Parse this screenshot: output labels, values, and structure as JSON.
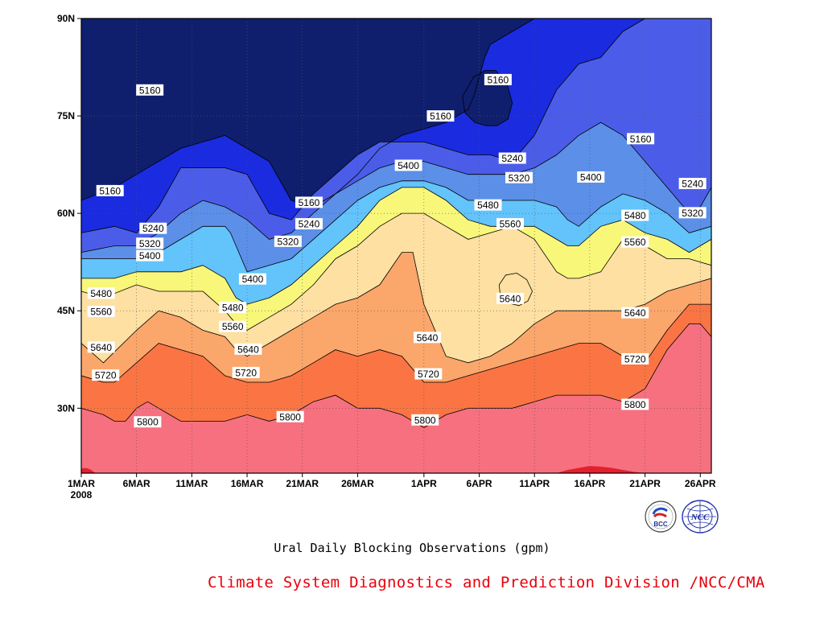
{
  "chart_data": {
    "type": "heatmap",
    "subtype": "filled-contour time-latitude",
    "title": "Ural Daily Blocking Observations (gpm)",
    "xlabel": "",
    "ylabel": "",
    "x_start_day": 1,
    "x_end_day": 58,
    "x_ticks": [
      {
        "day": 1,
        "label": "1MAR"
      },
      {
        "day": 6,
        "label": "6MAR"
      },
      {
        "day": 11,
        "label": "11MAR"
      },
      {
        "day": 16,
        "label": "16MAR"
      },
      {
        "day": 21,
        "label": "21MAR"
      },
      {
        "day": 26,
        "label": "26MAR"
      },
      {
        "day": 32,
        "label": "1APR"
      },
      {
        "day": 37,
        "label": "6APR"
      },
      {
        "day": 42,
        "label": "11APR"
      },
      {
        "day": 47,
        "label": "16APR"
      },
      {
        "day": 52,
        "label": "21APR"
      },
      {
        "day": 57,
        "label": "26APR"
      }
    ],
    "x_year_label": "2008",
    "ylim": [
      20,
      90
    ],
    "y_ticks": [
      {
        "lat": 30,
        "label": "30N"
      },
      {
        "lat": 45,
        "label": "45N"
      },
      {
        "lat": 60,
        "label": "60N"
      },
      {
        "lat": 75,
        "label": "75N"
      },
      {
        "lat": 90,
        "label": "90N"
      }
    ],
    "grid": true,
    "levels": [
      5160,
      5240,
      5320,
      5400,
      5480,
      5560,
      5640,
      5720,
      5800,
      5880
    ],
    "colors": [
      "#0f1f6e",
      "#1a2be0",
      "#4b5de8",
      "#5b8fe8",
      "#63c3fb",
      "#f8f77a",
      "#fde0a2",
      "#fba66b",
      "#fa7543",
      "#f6707f",
      "#e4202e"
    ],
    "boundaries": [
      {
        "level": 5160,
        "days": [
          1,
          4,
          6,
          10,
          14,
          18,
          20,
          22,
          24,
          26,
          28,
          30,
          32,
          34,
          36,
          36.5,
          37,
          37.5,
          38,
          40,
          42,
          44,
          46,
          48,
          50,
          52,
          54,
          56,
          58
        ],
        "lats": [
          62,
          64,
          66,
          70,
          72,
          68,
          62,
          61,
          63,
          66,
          70,
          72,
          73,
          74,
          76,
          78,
          81,
          84,
          86,
          88,
          90,
          90,
          90,
          90,
          90,
          90,
          90,
          90,
          90
        ]
      },
      {
        "level": 5240,
        "days": [
          1,
          4,
          6,
          8,
          10,
          12,
          14,
          16,
          18,
          20,
          22,
          24,
          26,
          28,
          30,
          32,
          34,
          36,
          38,
          40,
          42,
          44,
          46,
          48,
          50,
          52,
          54,
          56,
          57,
          58
        ],
        "lats": [
          57,
          58,
          57,
          61,
          67,
          67,
          67,
          66,
          60,
          59,
          63,
          66,
          69,
          71,
          71,
          71,
          70,
          69,
          69,
          68,
          72,
          79,
          83,
          84,
          88,
          90,
          90,
          90,
          90,
          90
        ]
      },
      {
        "level": 5320,
        "days": [
          1,
          4,
          6,
          8,
          10,
          12,
          14,
          16,
          18,
          20,
          22,
          24,
          26,
          28,
          30,
          32,
          34,
          36,
          38,
          40,
          42,
          44,
          46,
          48,
          50,
          52,
          54,
          56,
          57,
          58
        ],
        "lats": [
          54,
          55,
          55,
          57,
          60,
          62,
          61,
          59,
          56,
          57,
          60,
          63,
          65,
          67,
          68,
          68,
          67,
          66,
          66,
          66,
          67,
          69,
          72,
          74,
          72,
          68,
          64,
          60,
          61,
          64
        ]
      },
      {
        "level": 5400,
        "days": [
          1,
          4,
          6,
          8,
          10,
          12,
          14,
          14.5,
          16,
          18,
          20,
          22,
          24,
          26,
          28,
          30,
          32,
          34,
          36,
          38,
          40,
          42,
          44,
          45,
          46,
          48,
          50,
          52,
          54,
          56,
          58
        ],
        "lats": [
          53,
          53,
          53,
          54,
          56,
          58,
          58,
          57,
          51,
          52,
          53,
          56,
          59,
          62,
          64,
          65,
          65,
          64,
          62,
          62,
          62,
          62,
          61,
          59,
          58,
          61,
          63,
          62,
          60,
          57,
          58
        ]
      },
      {
        "level": 5480,
        "days": [
          1,
          4,
          6,
          8,
          10,
          12,
          14,
          15,
          16,
          18,
          20,
          22,
          24,
          26,
          28,
          30,
          32,
          34,
          36,
          38,
          40,
          42,
          44,
          45,
          46,
          48,
          50,
          52,
          54,
          56,
          58
        ],
        "lats": [
          50,
          50,
          51,
          51,
          51,
          52,
          50,
          47,
          46,
          47,
          49,
          52,
          55,
          58,
          62,
          64,
          64,
          62,
          59,
          58,
          58,
          58,
          56,
          55,
          55,
          58,
          59,
          57,
          56,
          54,
          56
        ]
      },
      {
        "level": 5560,
        "days": [
          1,
          3,
          6,
          8,
          10,
          12,
          14,
          15,
          16,
          18,
          20,
          22,
          24,
          26,
          28,
          29,
          30,
          32,
          34,
          36,
          38,
          40,
          42,
          44,
          45,
          46,
          48,
          50,
          52,
          54,
          56,
          58
        ],
        "lats": [
          48,
          47,
          49,
          48,
          48,
          48,
          45,
          43,
          42,
          44,
          46,
          49,
          53,
          55,
          58,
          59,
          60,
          60,
          58,
          56,
          57,
          58,
          56,
          51,
          50,
          50,
          51,
          56,
          55,
          53,
          53,
          52
        ]
      },
      {
        "level": 5640,
        "days": [
          1,
          3,
          6,
          8,
          10,
          12,
          14,
          15,
          16,
          18,
          20,
          22,
          24,
          26,
          28,
          30,
          31,
          32,
          34,
          36,
          38,
          40,
          42,
          44,
          46,
          48,
          50,
          52,
          54,
          56,
          58
        ],
        "lats": [
          40,
          37,
          42,
          45,
          44,
          42,
          41,
          39,
          38,
          40,
          42,
          44,
          46,
          47,
          49,
          54,
          54,
          46,
          38,
          37,
          38,
          40,
          43,
          45,
          45,
          45,
          45,
          46,
          48,
          49,
          50
        ]
      },
      {
        "level": 5720,
        "days": [
          1,
          3,
          4,
          6,
          8,
          10,
          12,
          14,
          16,
          18,
          20,
          22,
          24,
          26,
          28,
          30,
          32,
          34,
          36,
          38,
          40,
          42,
          44,
          46,
          48,
          50,
          52,
          54,
          56,
          57,
          58
        ],
        "lats": [
          35,
          34,
          34,
          37,
          40,
          39,
          38,
          35,
          34,
          34,
          35,
          37,
          39,
          38,
          39,
          38,
          34,
          34,
          35,
          36,
          37,
          38,
          39,
          40,
          40,
          38,
          37,
          42,
          46,
          46,
          46
        ]
      },
      {
        "level": 5800,
        "days": [
          1,
          3,
          4,
          5,
          6,
          7,
          8,
          10,
          12,
          14,
          16,
          18,
          20,
          22,
          24,
          26,
          28,
          30,
          32,
          34,
          36,
          38,
          40,
          42,
          44,
          46,
          48,
          50,
          52,
          54,
          56,
          57,
          58
        ],
        "lats": [
          30,
          29,
          28,
          28,
          30,
          31,
          30,
          28,
          28,
          28,
          29,
          28,
          29,
          31,
          32,
          30,
          30,
          29,
          27,
          29,
          30,
          30,
          30,
          31,
          32,
          32,
          32,
          31,
          33,
          39,
          43,
          43,
          41
        ]
      },
      {
        "level": 5880,
        "days": [
          1,
          1.4,
          1.8,
          2.3,
          44,
          45,
          46,
          47,
          48,
          49,
          50,
          51,
          52,
          53,
          58
        ],
        "lats": [
          20.7,
          20.8,
          20.6,
          20,
          20,
          20.5,
          20.8,
          21.1,
          21.0,
          20.8,
          20.5,
          20.2,
          20,
          20,
          20
        ]
      }
    ],
    "extra_contours": [
      {
        "level": 5160,
        "note": "closed low near 6APR 75-81N",
        "days": [
          35.5,
          36.5,
          37.5,
          38.5,
          39.5,
          40,
          39.6,
          38.6,
          37.6,
          36.6,
          35.7,
          35.5
        ],
        "lats": [
          78,
          81,
          82,
          82,
          80,
          77,
          74.5,
          73.5,
          73.5,
          74,
          75.5,
          78
        ]
      },
      {
        "level": 5560,
        "note": "closed cell near 9APR 46-51N",
        "days": [
          38.8,
          39.4,
          40.4,
          41.3,
          41.8,
          41.4,
          40.6,
          39.6,
          38.9,
          38.8
        ],
        "lats": [
          49,
          50.5,
          50.8,
          49.8,
          48,
          46.5,
          45.8,
          46.2,
          47.5,
          49
        ]
      }
    ],
    "contour_labels": [
      {
        "text": "5160",
        "day": 7.2,
        "lat": 79
      },
      {
        "text": "5160",
        "day": 3.6,
        "lat": 63.5
      },
      {
        "text": "5160",
        "day": 21.6,
        "lat": 61.7
      },
      {
        "text": "5160",
        "day": 33.5,
        "lat": 75
      },
      {
        "text": "5160",
        "day": 38.7,
        "lat": 80.6
      },
      {
        "text": "5160",
        "day": 51.6,
        "lat": 71.5
      },
      {
        "text": "5240",
        "day": 7.5,
        "lat": 57.7
      },
      {
        "text": "5240",
        "day": 21.6,
        "lat": 58.4
      },
      {
        "text": "5240",
        "day": 40,
        "lat": 68.5
      },
      {
        "text": "5240",
        "day": 56.3,
        "lat": 64.6
      },
      {
        "text": "5320",
        "day": 7.2,
        "lat": 55.4
      },
      {
        "text": "5320",
        "day": 19.7,
        "lat": 55.7
      },
      {
        "text": "5320",
        "day": 40.6,
        "lat": 65.5
      },
      {
        "text": "5320",
        "day": 56.3,
        "lat": 60.1
      },
      {
        "text": "5400",
        "day": 7.2,
        "lat": 53.5
      },
      {
        "text": "5400",
        "day": 16.5,
        "lat": 49.9
      },
      {
        "text": "5400",
        "day": 30.6,
        "lat": 67.4
      },
      {
        "text": "5400",
        "day": 47.1,
        "lat": 65.6
      },
      {
        "text": "5480",
        "day": 2.8,
        "lat": 47.7
      },
      {
        "text": "5480",
        "day": 14.7,
        "lat": 45.5
      },
      {
        "text": "5480",
        "day": 37.8,
        "lat": 61.3
      },
      {
        "text": "5480",
        "day": 51.1,
        "lat": 59.7
      },
      {
        "text": "5560",
        "day": 2.8,
        "lat": 44.9
      },
      {
        "text": "5560",
        "day": 14.7,
        "lat": 42.6
      },
      {
        "text": "5560",
        "day": 39.8,
        "lat": 58.4
      },
      {
        "text": "5560",
        "day": 51.1,
        "lat": 55.6
      },
      {
        "text": "5640",
        "day": 2.8,
        "lat": 39.4
      },
      {
        "text": "5640",
        "day": 16.1,
        "lat": 39.1
      },
      {
        "text": "5640",
        "day": 32.3,
        "lat": 40.9
      },
      {
        "text": "5640",
        "day": 39.8,
        "lat": 46.9
      },
      {
        "text": "5640",
        "day": 51.1,
        "lat": 44.7
      },
      {
        "text": "5720",
        "day": 3.2,
        "lat": 35.1
      },
      {
        "text": "5720",
        "day": 15.9,
        "lat": 35.5
      },
      {
        "text": "5720",
        "day": 32.4,
        "lat": 35.3
      },
      {
        "text": "5720",
        "day": 51.1,
        "lat": 37.6
      },
      {
        "text": "5800",
        "day": 7.0,
        "lat": 27.9
      },
      {
        "text": "5800",
        "day": 19.9,
        "lat": 28.7
      },
      {
        "text": "5800",
        "day": 32.1,
        "lat": 28.2
      },
      {
        "text": "5800",
        "day": 51.1,
        "lat": 30.6
      }
    ]
  },
  "footer": {
    "title": "Ural Daily Blocking Observations (gpm)",
    "credit": "Climate System Diagnostics and Prediction Division /NCC/CMA"
  },
  "logos": [
    {
      "name": "bcc-logo",
      "text": "BCC"
    },
    {
      "name": "ncc-logo",
      "text": "NCC"
    }
  ]
}
